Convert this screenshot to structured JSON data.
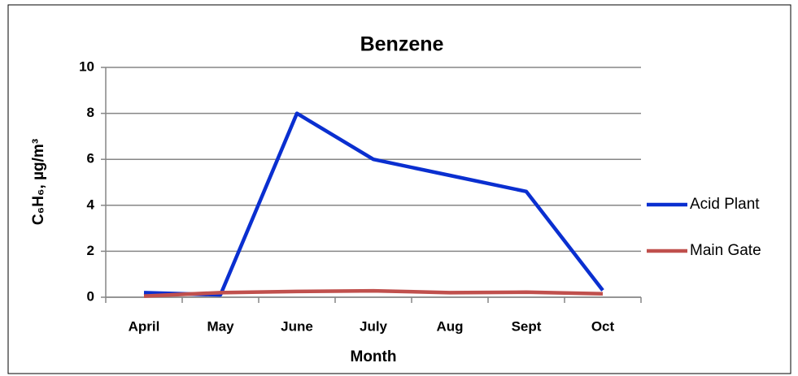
{
  "chart_data": {
    "type": "line",
    "title": "Benzene",
    "x_label": "Month",
    "y_label": "C₆H₆, µg/m³",
    "categories": [
      "April",
      "May",
      "June",
      "July",
      "Aug",
      "Sept",
      "Oct"
    ],
    "series": [
      {
        "name": "Acid Plant",
        "color": "#0a2fd0",
        "values": [
          0.2,
          0.1,
          8.0,
          6.0,
          5.3,
          4.6,
          0.3
        ]
      },
      {
        "name": "Main Gate",
        "color": "#c0504d",
        "values": [
          0.05,
          0.2,
          0.25,
          0.28,
          0.2,
          0.22,
          0.15
        ]
      }
    ],
    "ylim": [
      0,
      10
    ],
    "yticks": [
      0,
      2,
      4,
      6,
      8,
      10
    ],
    "grid": true,
    "legend": "right"
  }
}
